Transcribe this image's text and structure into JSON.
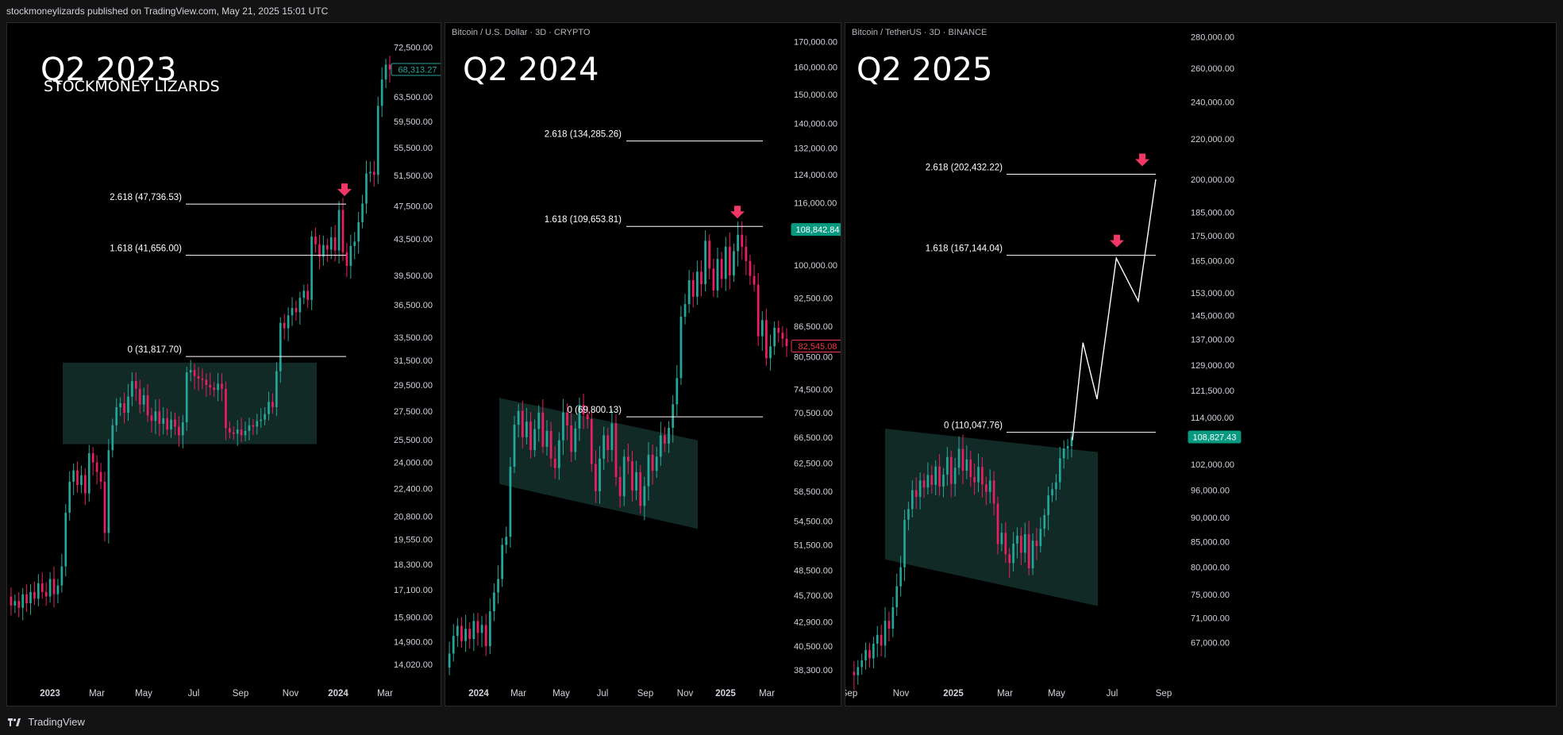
{
  "header": {
    "published": "stockmoneylizards published on TradingView.com, May 21, 2025 15:01 UTC"
  },
  "footer": {
    "logo_text": "TradingView"
  },
  "chart_data": [
    {
      "type": "candlestick",
      "label": "Q2 2023",
      "brand": "STOCKMONEY LIZARDS",
      "symbol": "",
      "ylim": [
        13500,
        76000
      ],
      "y_scale": "log",
      "y_ticks": [
        72500,
        63500,
        59500,
        55500,
        51500,
        47500,
        43500,
        39500,
        36500,
        33500,
        31500,
        29500,
        27500,
        25500,
        24000,
        22400,
        20800,
        19550,
        18300,
        17100,
        15900,
        14900,
        14020
      ],
      "x_ticks": [
        "2023",
        "Mar",
        "May",
        "Jul",
        "Sep",
        "Nov",
        "2024",
        "Mar"
      ],
      "current_price": {
        "value": "68,313.27",
        "color": "#26a69a"
      },
      "fib_levels": [
        {
          "label": "2.618 (47,736.53)",
          "value": 47736.53
        },
        {
          "label": "1.618 (41,656.00)",
          "value": 41656.0
        },
        {
          "label": "0 (31,817.70)",
          "value": 31817.7
        }
      ],
      "targets": [
        47736.53
      ],
      "consolidation": {
        "y_top_left": 31300,
        "y_bottom_left": 25200,
        "y_top_right": 31300,
        "y_bottom_right": 25200
      },
      "path": [
        [
          0,
          16800
        ],
        [
          5,
          16400
        ],
        [
          10,
          16600
        ],
        [
          15,
          16300
        ],
        [
          20,
          16900
        ],
        [
          25,
          16500
        ],
        [
          30,
          17000
        ],
        [
          35,
          16700
        ],
        [
          40,
          17400
        ],
        [
          45,
          17000
        ],
        [
          50,
          16800
        ],
        [
          55,
          17600
        ],
        [
          60,
          16900
        ],
        [
          65,
          17300
        ],
        [
          70,
          18200
        ],
        [
          75,
          21000
        ],
        [
          80,
          22800
        ],
        [
          85,
          23500
        ],
        [
          90,
          22600
        ],
        [
          95,
          23200
        ],
        [
          100,
          22100
        ],
        [
          105,
          24600
        ],
        [
          110,
          24000
        ],
        [
          115,
          23400
        ],
        [
          120,
          22800
        ],
        [
          125,
          19900
        ],
        [
          130,
          24800
        ],
        [
          135,
          26500
        ],
        [
          140,
          27800
        ],
        [
          145,
          28100
        ],
        [
          150,
          27400
        ],
        [
          155,
          28600
        ],
        [
          160,
          29800
        ],
        [
          165,
          29200
        ],
        [
          170,
          28000
        ],
        [
          175,
          28700
        ],
        [
          180,
          27200
        ],
        [
          185,
          26800
        ],
        [
          190,
          27500
        ],
        [
          195,
          26600
        ],
        [
          200,
          27000
        ],
        [
          205,
          26200
        ],
        [
          210,
          26900
        ],
        [
          215,
          26400
        ],
        [
          220,
          25800
        ],
        [
          225,
          26700
        ],
        [
          230,
          30500
        ],
        [
          235,
          30700
        ],
        [
          240,
          30200
        ],
        [
          245,
          30000
        ],
        [
          250,
          29900
        ],
        [
          255,
          29500
        ],
        [
          260,
          29300
        ],
        [
          265,
          29100
        ],
        [
          270,
          29600
        ],
        [
          275,
          29200
        ],
        [
          280,
          26300
        ],
        [
          285,
          26000
        ],
        [
          290,
          25900
        ],
        [
          295,
          26200
        ],
        [
          300,
          25800
        ],
        [
          305,
          26100
        ],
        [
          310,
          26500
        ],
        [
          315,
          26400
        ],
        [
          320,
          26800
        ],
        [
          325,
          26900
        ],
        [
          330,
          27300
        ],
        [
          335,
          28200
        ],
        [
          340,
          27800
        ],
        [
          345,
          30600
        ],
        [
          350,
          34800
        ],
        [
          355,
          34300
        ],
        [
          360,
          35500
        ],
        [
          365,
          36200
        ],
        [
          370,
          35800
        ],
        [
          375,
          37200
        ],
        [
          380,
          37900
        ],
        [
          385,
          37000
        ],
        [
          390,
          43800
        ],
        [
          395,
          42900
        ],
        [
          400,
          41500
        ],
        [
          405,
          42800
        ],
        [
          410,
          42300
        ],
        [
          415,
          43700
        ],
        [
          420,
          42200
        ],
        [
          425,
          47000
        ],
        [
          430,
          42000
        ],
        [
          435,
          40500
        ],
        [
          440,
          42700
        ],
        [
          445,
          43200
        ],
        [
          450,
          45500
        ],
        [
          455,
          47800
        ],
        [
          460,
          51800
        ],
        [
          465,
          52000
        ],
        [
          470,
          51600
        ],
        [
          475,
          62000
        ],
        [
          480,
          66500
        ],
        [
          485,
          69200
        ],
        [
          490,
          68313
        ]
      ]
    },
    {
      "type": "candlestick",
      "label": "Q2 2024",
      "symbol": "Bitcoin / U.S. Dollar · 3D · CRYPTO",
      "ylim": [
        37500,
        175000
      ],
      "y_scale": "log",
      "y_ticks": [
        170000,
        160000,
        150000,
        140000,
        132000,
        124000,
        116000,
        100000,
        92500,
        86500,
        80500,
        74500,
        70500,
        66500,
        62500,
        58500,
        54500,
        51500,
        48500,
        45700,
        42900,
        40500,
        38300
      ],
      "x_ticks": [
        "2024",
        "Mar",
        "May",
        "Jul",
        "Sep",
        "Nov",
        "2025",
        "Mar"
      ],
      "current_price": {
        "value": "82,545.08",
        "color": "#f23645"
      },
      "marker_price": {
        "value": "108,842.84",
        "color": "#089981"
      },
      "fib_levels": [
        {
          "label": "2.618 (134,285.26)",
          "value": 134285.26
        },
        {
          "label": "1.618 (109,653.81)",
          "value": 109653.81
        },
        {
          "label": "0 (69,800.13)",
          "value": 69800.13
        }
      ],
      "targets": [
        109653.81
      ],
      "consolidation": {
        "y_top_left": 73000,
        "y_bottom_left": 59500,
        "y_top_right": 66000,
        "y_bottom_right": 53500
      },
      "path": [
        [
          0,
          38500
        ],
        [
          5,
          39800
        ],
        [
          10,
          41500
        ],
        [
          15,
          42500
        ],
        [
          20,
          41000
        ],
        [
          25,
          42200
        ],
        [
          30,
          41200
        ],
        [
          35,
          43000
        ],
        [
          40,
          41800
        ],
        [
          45,
          42600
        ],
        [
          50,
          40500
        ],
        [
          55,
          44000
        ],
        [
          60,
          46000
        ],
        [
          65,
          47500
        ],
        [
          70,
          51500
        ],
        [
          75,
          52500
        ],
        [
          80,
          62000
        ],
        [
          85,
          68500
        ],
        [
          90,
          70800
        ],
        [
          95,
          66500
        ],
        [
          100,
          69000
        ],
        [
          105,
          64500
        ],
        [
          110,
          67800
        ],
        [
          115,
          70500
        ],
        [
          120,
          65000
        ],
        [
          125,
          67500
        ],
        [
          130,
          63200
        ],
        [
          135,
          61800
        ],
        [
          140,
          66000
        ],
        [
          145,
          70500
        ],
        [
          150,
          68400
        ],
        [
          155,
          64200
        ],
        [
          160,
          67900
        ],
        [
          165,
          71800
        ],
        [
          170,
          70200
        ],
        [
          175,
          69400
        ],
        [
          180,
          62400
        ],
        [
          185,
          58500
        ],
        [
          190,
          63200
        ],
        [
          195,
          66800
        ],
        [
          200,
          64500
        ],
        [
          205,
          68700
        ],
        [
          210,
          60500
        ],
        [
          215,
          57800
        ],
        [
          220,
          63500
        ],
        [
          225,
          62800
        ],
        [
          230,
          58600
        ],
        [
          235,
          61200
        ],
        [
          240,
          56500
        ],
        [
          245,
          59200
        ],
        [
          250,
          63800
        ],
        [
          255,
          61400
        ],
        [
          260,
          63500
        ],
        [
          265,
          66800
        ],
        [
          270,
          65500
        ],
        [
          275,
          68000
        ],
        [
          280,
          71900
        ],
        [
          285,
          76500
        ],
        [
          290,
          88500
        ],
        [
          295,
          91200
        ],
        [
          300,
          96500
        ],
        [
          305,
          92800
        ],
        [
          310,
          98500
        ],
        [
          315,
          95600
        ],
        [
          320,
          106000
        ],
        [
          325,
          99200
        ],
        [
          330,
          94200
        ],
        [
          335,
          101500
        ],
        [
          340,
          96800
        ],
        [
          345,
          104500
        ],
        [
          350,
          97600
        ],
        [
          355,
          103400
        ],
        [
          360,
          107500
        ],
        [
          365,
          104500
        ],
        [
          370,
          101000
        ],
        [
          375,
          97500
        ],
        [
          380,
          95500
        ],
        [
          385,
          84500
        ],
        [
          390,
          87800
        ],
        [
          395,
          80200
        ],
        [
          400,
          82500
        ],
        [
          405,
          86200
        ],
        [
          410,
          85200
        ],
        [
          415,
          84000
        ],
        [
          420,
          82545
        ]
      ]
    },
    {
      "type": "candlestick",
      "label": "Q2 2025",
      "symbol": "Bitcoin / TetherUS · 3D · BINANCE",
      "ylim": [
        61500,
        285000
      ],
      "y_scale": "log",
      "y_ticks": [
        280000,
        260000,
        240000,
        220000,
        200000,
        185000,
        175000,
        165000,
        153000,
        145000,
        137000,
        129000,
        121500,
        114000,
        102000,
        96000,
        90000,
        85000,
        80000,
        75000,
        71000,
        67000
      ],
      "x_ticks": [
        "Sep",
        "Nov",
        "2025",
        "Mar",
        "May",
        "Jul",
        "Sep"
      ],
      "current_price": {
        "value": "108,827.43",
        "color": "#089981"
      },
      "fib_levels": [
        {
          "label": "2.618 (202,432.22)",
          "value": 202432.22
        },
        {
          "label": "1.618 (167,144.04)",
          "value": 167144.04
        },
        {
          "label": "0 (110,047.76)",
          "value": 110047.76
        }
      ],
      "targets": [
        167144.04,
        202432.22
      ],
      "projection": [
        [
          0,
          108000
        ],
        [
          12,
          136000
        ],
        [
          28,
          119000
        ],
        [
          50,
          166000
        ],
        [
          75,
          150000
        ],
        [
          95,
          200000
        ]
      ],
      "consolidation": {
        "y_top_left": 111000,
        "y_bottom_left": 81500,
        "y_top_right": 105000,
        "y_bottom_right": 73000
      },
      "path": [
        [
          0,
          62500
        ],
        [
          5,
          62000
        ],
        [
          10,
          63200
        ],
        [
          15,
          64200
        ],
        [
          20,
          65800
        ],
        [
          25,
          64500
        ],
        [
          30,
          66800
        ],
        [
          35,
          68200
        ],
        [
          40,
          66500
        ],
        [
          45,
          70500
        ],
        [
          50,
          69200
        ],
        [
          55,
          72800
        ],
        [
          60,
          76500
        ],
        [
          65,
          80000
        ],
        [
          70,
          89500
        ],
        [
          75,
          91800
        ],
        [
          80,
          96000
        ],
        [
          85,
          94500
        ],
        [
          90,
          98200
        ],
        [
          95,
          96600
        ],
        [
          100,
          99500
        ],
        [
          105,
          97200
        ],
        [
          110,
          101500
        ],
        [
          115,
          96800
        ],
        [
          120,
          99600
        ],
        [
          125,
          103800
        ],
        [
          130,
          97400
        ],
        [
          135,
          101200
        ],
        [
          140,
          105800
        ],
        [
          145,
          100500
        ],
        [
          150,
          103200
        ],
        [
          155,
          99000
        ],
        [
          160,
          97800
        ],
        [
          165,
          101400
        ],
        [
          170,
          97300
        ],
        [
          175,
          95600
        ],
        [
          180,
          98200
        ],
        [
          185,
          93000
        ],
        [
          190,
          84500
        ],
        [
          195,
          86800
        ],
        [
          200,
          82500
        ],
        [
          205,
          80800
        ],
        [
          210,
          84600
        ],
        [
          215,
          86200
        ],
        [
          220,
          82800
        ],
        [
          225,
          86500
        ],
        [
          230,
          79800
        ],
        [
          235,
          85200
        ],
        [
          240,
          84100
        ],
        [
          245,
          87600
        ],
        [
          250,
          90500
        ],
        [
          255,
          94800
        ],
        [
          260,
          96200
        ],
        [
          265,
          97800
        ],
        [
          270,
          103500
        ],
        [
          275,
          105900
        ],
        [
          280,
          106500
        ],
        [
          285,
          108827
        ]
      ]
    }
  ]
}
